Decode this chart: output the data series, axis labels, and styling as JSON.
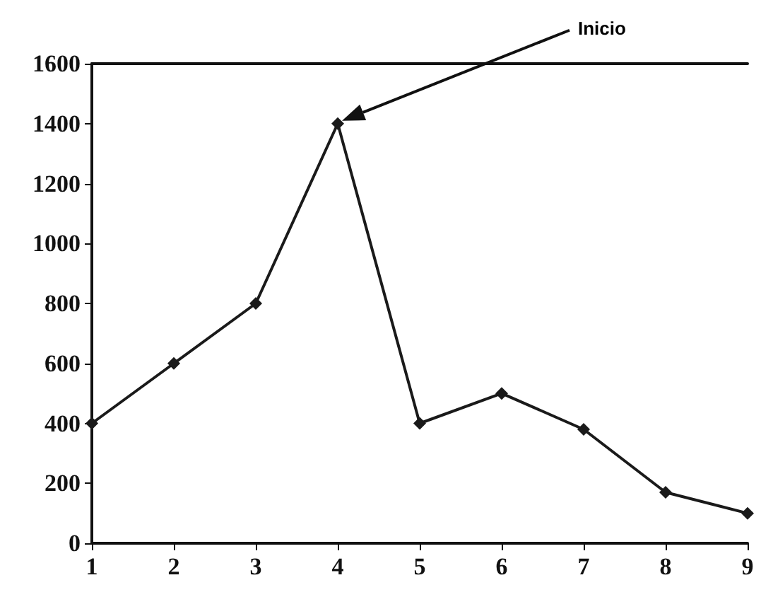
{
  "chart_data": {
    "type": "line",
    "x": [
      1,
      2,
      3,
      4,
      5,
      6,
      7,
      8,
      9
    ],
    "series": [
      {
        "color": "#1a1a1a",
        "values": [
          400,
          600,
          800,
          1400,
          400,
          500,
          380,
          170,
          100
        ]
      }
    ],
    "xlim": [
      1,
      9
    ],
    "xticks": [
      1,
      2,
      3,
      4,
      5,
      6,
      7,
      8,
      9
    ],
    "ylim": [
      0,
      1600
    ],
    "yticks": [
      0,
      200,
      400,
      600,
      800,
      1000,
      1200,
      1400,
      1600
    ],
    "marker": "diamond",
    "line_style": "solid",
    "grid": false,
    "annotations": [
      "Inicio"
    ]
  }
}
